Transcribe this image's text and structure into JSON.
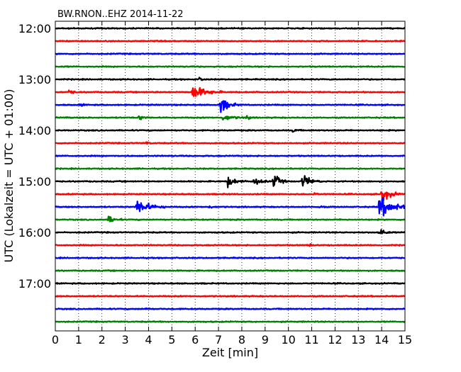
{
  "chart_data": {
    "type": "line",
    "title": "BW.RNON..EHZ 2014-11-22",
    "xlabel": "Zeit  [min]",
    "ylabel": "UTC (Lokalzeit = UTC + 01:00)",
    "xlim": [
      0,
      15
    ],
    "x_ticks": [
      "0",
      "1",
      "2",
      "3",
      "4",
      "5",
      "6",
      "7",
      "8",
      "9",
      "10",
      "11",
      "12",
      "13",
      "14",
      "15"
    ],
    "y_ticks": [
      "12:00",
      "13:00",
      "14:00",
      "15:00",
      "16:00",
      "17:00"
    ],
    "grid": "vertical dotted",
    "trace_colors": [
      "#000000",
      "#ff0000",
      "#0000ff",
      "#007f00"
    ],
    "traces": [
      {
        "start": "12:00",
        "events": []
      },
      {
        "start": "12:15",
        "events": []
      },
      {
        "start": "12:30",
        "events": []
      },
      {
        "start": "12:45",
        "events": []
      },
      {
        "start": "13:00",
        "events": [
          {
            "t": 6.2,
            "amp": 0.25,
            "dur": 0.3
          }
        ]
      },
      {
        "start": "13:15",
        "events": [
          {
            "t": 0.6,
            "amp": 0.35,
            "dur": 0.4
          },
          {
            "t": 5.9,
            "amp": 0.85,
            "dur": 1.3
          }
        ]
      },
      {
        "start": "13:30",
        "events": [
          {
            "t": 7.1,
            "amp": 1.0,
            "dur": 0.8
          },
          {
            "t": 1.1,
            "amp": 0.15,
            "dur": 0.3
          }
        ]
      },
      {
        "start": "13:45",
        "events": [
          {
            "t": 3.6,
            "amp": 0.3,
            "dur": 0.5
          },
          {
            "t": 7.2,
            "amp": 0.35,
            "dur": 1.0
          },
          {
            "t": 8.2,
            "amp": 0.3,
            "dur": 0.3
          }
        ]
      },
      {
        "start": "14:00",
        "events": [
          {
            "t": 10.2,
            "amp": 0.2,
            "dur": 0.4
          }
        ]
      },
      {
        "start": "14:15",
        "events": [
          {
            "t": 3.9,
            "amp": 0.15,
            "dur": 0.3
          }
        ]
      },
      {
        "start": "14:30",
        "events": []
      },
      {
        "start": "14:45",
        "events": []
      },
      {
        "start": "15:00",
        "events": [
          {
            "t": 7.4,
            "amp": 0.6,
            "dur": 0.8
          },
          {
            "t": 8.5,
            "amp": 0.5,
            "dur": 0.7
          },
          {
            "t": 9.35,
            "amp": 1.05,
            "dur": 0.6
          },
          {
            "t": 10.6,
            "amp": 0.9,
            "dur": 0.8
          }
        ]
      },
      {
        "start": "15:15",
        "events": [
          {
            "t": 11.1,
            "amp": 0.2,
            "dur": 0.3
          },
          {
            "t": 14.0,
            "amp": 0.9,
            "dur": 0.9
          }
        ]
      },
      {
        "start": "15:30",
        "events": [
          {
            "t": 3.5,
            "amp": 0.95,
            "dur": 1.3
          },
          {
            "t": 13.9,
            "amp": 1.3,
            "dur": 1.5
          },
          {
            "t": 6.6,
            "amp": 0.2,
            "dur": 0.3
          },
          {
            "t": 11.3,
            "amp": 0.2,
            "dur": 0.3
          }
        ]
      },
      {
        "start": "15:45",
        "events": [
          {
            "t": 2.3,
            "amp": 0.5,
            "dur": 0.6
          }
        ]
      },
      {
        "start": "16:00",
        "events": [
          {
            "t": 13.9,
            "amp": 0.7,
            "dur": 0.5
          }
        ]
      },
      {
        "start": "16:15",
        "events": [
          {
            "t": 10.9,
            "amp": 0.2,
            "dur": 0.3
          }
        ]
      },
      {
        "start": "16:30",
        "events": []
      },
      {
        "start": "16:45",
        "events": []
      },
      {
        "start": "17:00",
        "events": []
      },
      {
        "start": "17:15",
        "events": []
      },
      {
        "start": "17:30",
        "events": [
          {
            "t": 3.9,
            "amp": 0.15,
            "dur": 0.3
          }
        ]
      },
      {
        "start": "17:45",
        "events": []
      }
    ]
  }
}
